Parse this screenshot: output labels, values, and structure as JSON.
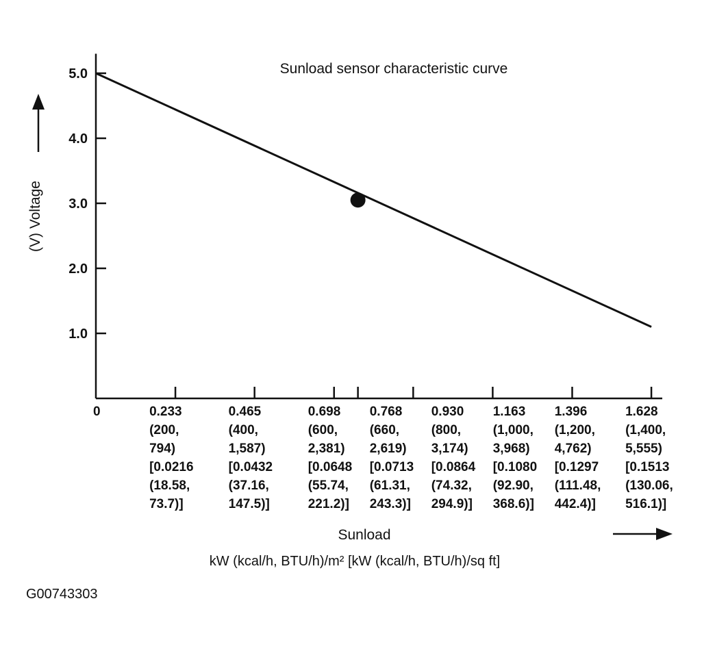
{
  "chart_data": {
    "type": "line",
    "title": "Sunload sensor characteristic curve",
    "y_label": "(V) Voltage",
    "x_label": "Sunload",
    "x_units": "kW (kcal/h, BTU/h)/m²  [kW (kcal/h, BTU/h)/sq ft]",
    "figure_id": "G00743303",
    "series": [
      {
        "x": [
          0,
          1.628
        ],
        "values": [
          5.0,
          1.1
        ],
        "color": "#111111"
      }
    ],
    "points": {
      "x": [
        0.768
      ],
      "values": [
        3.05
      ],
      "color": "#111111"
    },
    "xlim": [
      0,
      1.66
    ],
    "ylim": [
      0,
      5.3
    ],
    "xticks": [
      0,
      {
        "value": 0.233,
        "label": "0.233\n(200,\n794)\n[0.0216\n(18.58,\n73.7)]"
      },
      {
        "value": 0.465,
        "label": "0.465\n(400,\n1,587)\n[0.0432\n(37.16,\n147.5)]"
      },
      {
        "value": 0.698,
        "label": "0.698\n(600,\n2,381)\n[0.0648\n(55.74,\n221.2)]"
      },
      {
        "value": 0.768,
        "label": "0.768\n(660,\n2,619)\n[0.0713\n(61.31,\n243.3)]"
      },
      {
        "value": 0.93,
        "label": "0.930\n(800,\n3,174)\n[0.0864\n(74.32,\n294.9)]"
      },
      {
        "value": 1.163,
        "label": "1.163\n(1,000,\n3,968)\n[0.1080\n(92.90,\n368.6)]"
      },
      {
        "value": 1.396,
        "label": "1.396\n(1,200,\n4,762)\n[0.1297\n(111.48,\n442.4)]"
      },
      {
        "value": 1.628,
        "label": "1.628\n(1,400,\n5,555)\n[0.1513\n(130.06,\n516.1)]"
      }
    ],
    "yticks": [
      {
        "value": 1,
        "label": "1.0"
      },
      {
        "value": 2,
        "label": "2.0"
      },
      {
        "value": 3,
        "label": "3.0"
      },
      {
        "value": 4,
        "label": "4.0"
      },
      {
        "value": 5,
        "label": "5.0"
      }
    ]
  }
}
